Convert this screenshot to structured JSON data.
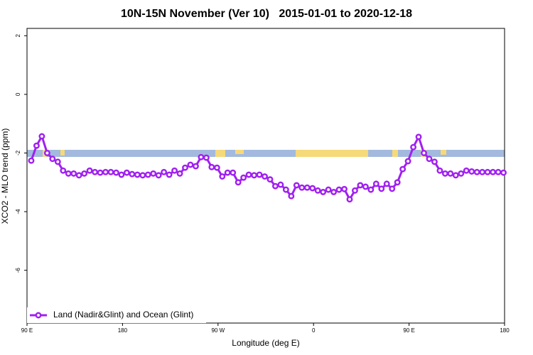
{
  "chart_data": {
    "type": "line",
    "title": "10N-15N November (Ver 10)   2015-01-01 to 2020-12-18",
    "xlabel": "Longitude (deg E)",
    "ylabel": "XCO2 - MLO trend (ppm)",
    "xlim": [
      90,
      540
    ],
    "ylim": [
      -7.8,
      2.25
    ],
    "xticks": [
      {
        "value": 90,
        "label": "90 E"
      },
      180,
      {
        "value": 270,
        "label": "90 W"
      },
      {
        "value": 360,
        "label": "0"
      },
      {
        "value": 450,
        "label": "90 E"
      },
      {
        "value": 540,
        "label": "180"
      }
    ],
    "yticks": [
      2,
      0,
      -2,
      -4,
      -6
    ],
    "legend": "bottom-left",
    "x": [
      94,
      99,
      104,
      109,
      114,
      119,
      124,
      129,
      134,
      139,
      144,
      149,
      154,
      159,
      164,
      169,
      174,
      179,
      184,
      189,
      194,
      199,
      204,
      209,
      214,
      219,
      224,
      229,
      234,
      239,
      244,
      249,
      254,
      259,
      264,
      269,
      274,
      279,
      284,
      289,
      294,
      299,
      304,
      309,
      314,
      319,
      324,
      329,
      334,
      339,
      344,
      349,
      354,
      359,
      364,
      369,
      374,
      379,
      384,
      389,
      394,
      399,
      404,
      409,
      414,
      419,
      424,
      429,
      434,
      439,
      444,
      449,
      454,
      459,
      464,
      469,
      474,
      479,
      484,
      489,
      494,
      499,
      504,
      509,
      514,
      519,
      524,
      529,
      534,
      539
    ],
    "series": [
      {
        "name": "Land (Nadir&Glint) and Ocean (Glint)",
        "color": "#a020f0",
        "values": [
          -2.26,
          -1.75,
          -1.43,
          -2.0,
          -2.2,
          -2.3,
          -2.6,
          -2.7,
          -2.7,
          -2.76,
          -2.7,
          -2.6,
          -2.65,
          -2.67,
          -2.65,
          -2.65,
          -2.67,
          -2.74,
          -2.67,
          -2.72,
          -2.74,
          -2.76,
          -2.74,
          -2.7,
          -2.76,
          -2.65,
          -2.74,
          -2.6,
          -2.7,
          -2.5,
          -2.4,
          -2.45,
          -2.14,
          -2.16,
          -2.48,
          -2.5,
          -2.8,
          -2.67,
          -2.67,
          -3.0,
          -2.84,
          -2.74,
          -2.76,
          -2.74,
          -2.8,
          -2.9,
          -3.13,
          -3.08,
          -3.25,
          -3.47,
          -3.1,
          -3.18,
          -3.18,
          -3.2,
          -3.28,
          -3.33,
          -3.25,
          -3.33,
          -3.25,
          -3.23,
          -3.58,
          -3.28,
          -3.1,
          -3.15,
          -3.25,
          -3.05,
          -3.22,
          -3.05,
          -3.22,
          -3.0,
          -2.55,
          -2.28,
          -1.8,
          -1.45,
          -2.0,
          -2.2,
          -2.3,
          -2.6,
          -2.7,
          -2.7,
          -2.76,
          -2.7,
          -2.6,
          -2.63,
          -2.65,
          -2.65,
          -2.65,
          -2.65,
          -2.65,
          -2.67
        ]
      }
    ]
  }
}
